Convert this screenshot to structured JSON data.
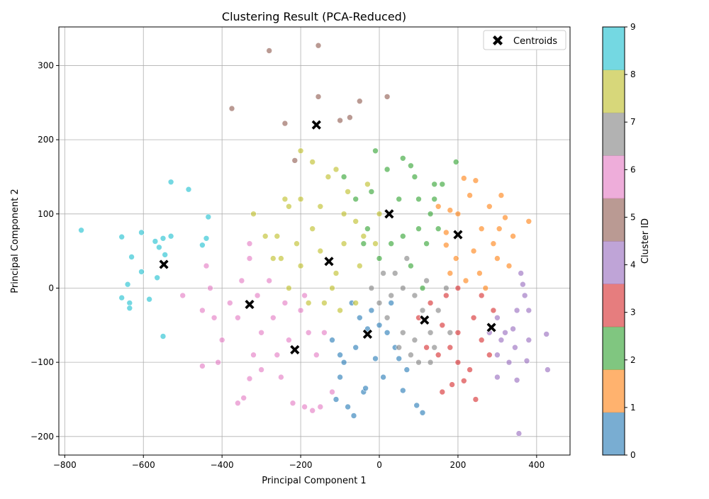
{
  "chart_data": {
    "type": "scatter",
    "title": "Clustering Result (PCA-Reduced)",
    "xlabel": "Principal Component 1",
    "ylabel": "Principal Component 2",
    "xlim": [
      -815,
      485
    ],
    "ylim": [
      -225,
      352
    ],
    "xticks": [
      -800,
      -600,
      -400,
      -200,
      0,
      200,
      400
    ],
    "yticks": [
      -200,
      -100,
      0,
      100,
      200,
      300
    ],
    "xtick_labels": [
      "−800",
      "−600",
      "−400",
      "−200",
      "0",
      "200",
      "400"
    ],
    "ytick_labels": [
      "−200",
      "−100",
      "0",
      "100",
      "200",
      "300"
    ],
    "grid": true,
    "legend": {
      "position": "top-right",
      "label": "Centroids"
    },
    "colorbar": {
      "label": "Cluster ID",
      "ticks": [
        "0",
        "1",
        "2",
        "3",
        "4",
        "5",
        "6",
        "7",
        "8",
        "9"
      ],
      "colors": [
        "#1f77b4",
        "#ff7f0e",
        "#2ca02c",
        "#d62728",
        "#9467bd",
        "#8c564b",
        "#e377c2",
        "#7f7f7f",
        "#bcbd22",
        "#17becf"
      ]
    },
    "point_alpha": 0.6,
    "centroids": [
      {
        "cluster": 0,
        "x": -30,
        "y": -62
      },
      {
        "cluster": 1,
        "x": 200,
        "y": 72
      },
      {
        "cluster": 2,
        "x": 25,
        "y": 100
      },
      {
        "cluster": 3,
        "x": 115,
        "y": -43
      },
      {
        "cluster": 4,
        "x": 285,
        "y": -53
      },
      {
        "cluster": 5,
        "x": -160,
        "y": 220
      },
      {
        "cluster": 6,
        "x": -330,
        "y": -22
      },
      {
        "cluster": 7,
        "x": -215,
        "y": -83
      },
      {
        "cluster": 8,
        "x": -128,
        "y": 36
      },
      {
        "cluster": 9,
        "x": -548,
        "y": 32
      }
    ],
    "series": [
      {
        "cluster": 0,
        "points": [
          [
            -30,
            -55
          ],
          [
            -60,
            -80
          ],
          [
            -90,
            -100
          ],
          [
            -100,
            -120
          ],
          [
            -80,
            -160
          ],
          [
            -65,
            -172
          ],
          [
            -40,
            -140
          ],
          [
            10,
            -120
          ],
          [
            50,
            -95
          ],
          [
            60,
            -138
          ],
          [
            95,
            -158
          ],
          [
            110,
            -168
          ],
          [
            -110,
            -150
          ],
          [
            -20,
            -30
          ],
          [
            0,
            -50
          ],
          [
            20,
            -60
          ],
          [
            -50,
            -40
          ],
          [
            -70,
            -20
          ],
          [
            40,
            -80
          ],
          [
            -120,
            -70
          ],
          [
            -10,
            -95
          ],
          [
            70,
            -110
          ],
          [
            -35,
            -135
          ],
          [
            -100,
            -90
          ],
          [
            30,
            -20
          ]
        ]
      },
      {
        "cluster": 1,
        "points": [
          [
            150,
            110
          ],
          [
            180,
            105
          ],
          [
            230,
            125
          ],
          [
            280,
            110
          ],
          [
            310,
            125
          ],
          [
            320,
            95
          ],
          [
            340,
            70
          ],
          [
            300,
            40
          ],
          [
            255,
            20
          ],
          [
            220,
            10
          ],
          [
            195,
            40
          ],
          [
            170,
            75
          ],
          [
            245,
            145
          ],
          [
            215,
            148
          ],
          [
            380,
            90
          ],
          [
            260,
            80
          ],
          [
            290,
            60
          ],
          [
            180,
            20
          ],
          [
            330,
            30
          ],
          [
            240,
            50
          ],
          [
            200,
            100
          ],
          [
            170,
            58
          ],
          [
            305,
            80
          ],
          [
            270,
            0
          ]
        ]
      },
      {
        "cluster": 2,
        "points": [
          [
            -10,
            185
          ],
          [
            60,
            175
          ],
          [
            80,
            165
          ],
          [
            90,
            150
          ],
          [
            100,
            120
          ],
          [
            140,
            140
          ],
          [
            160,
            140
          ],
          [
            195,
            170
          ],
          [
            130,
            100
          ],
          [
            100,
            80
          ],
          [
            60,
            70
          ],
          [
            30,
            60
          ],
          [
            0,
            40
          ],
          [
            -30,
            80
          ],
          [
            -60,
            120
          ],
          [
            -90,
            150
          ],
          [
            -20,
            130
          ],
          [
            20,
            160
          ],
          [
            120,
            60
          ],
          [
            80,
            30
          ],
          [
            150,
            80
          ],
          [
            110,
            0
          ],
          [
            -40,
            60
          ],
          [
            50,
            120
          ],
          [
            140,
            120
          ]
        ]
      },
      {
        "cluster": 3,
        "points": [
          [
            100,
            -40
          ],
          [
            130,
            -20
          ],
          [
            160,
            -50
          ],
          [
            180,
            -80
          ],
          [
            200,
            -100
          ],
          [
            230,
            -110
          ],
          [
            245,
            -150
          ],
          [
            215,
            -125
          ],
          [
            260,
            -70
          ],
          [
            290,
            -30
          ],
          [
            280,
            -90
          ],
          [
            160,
            -140
          ],
          [
            185,
            -130
          ],
          [
            240,
            -40
          ],
          [
            200,
            -60
          ],
          [
            150,
            -90
          ],
          [
            120,
            -80
          ],
          [
            260,
            -10
          ],
          [
            200,
            0
          ],
          [
            170,
            -10
          ]
        ]
      },
      {
        "cluster": 4,
        "points": [
          [
            300,
            -40
          ],
          [
            320,
            -60
          ],
          [
            350,
            -30
          ],
          [
            370,
            -10
          ],
          [
            380,
            -30
          ],
          [
            360,
            20
          ],
          [
            300,
            -120
          ],
          [
            330,
            -100
          ],
          [
            355,
            -196
          ],
          [
            425,
            -62
          ],
          [
            428,
            -110
          ],
          [
            375,
            -98
          ],
          [
            345,
            -80
          ],
          [
            310,
            -70
          ],
          [
            280,
            -60
          ],
          [
            365,
            5
          ],
          [
            340,
            -55
          ],
          [
            380,
            -70
          ],
          [
            300,
            -90
          ],
          [
            350,
            -124
          ]
        ]
      },
      {
        "cluster": 5,
        "points": [
          [
            -155,
            258
          ],
          [
            -75,
            230
          ],
          [
            -50,
            252
          ],
          [
            -100,
            226
          ],
          [
            -280,
            320
          ],
          [
            -240,
            222
          ],
          [
            -375,
            242
          ],
          [
            -215,
            172
          ],
          [
            -155,
            327
          ],
          [
            20,
            258
          ]
        ]
      },
      {
        "cluster": 6,
        "points": [
          [
            -450,
            -105
          ],
          [
            -410,
            -100
          ],
          [
            -360,
            -155
          ],
          [
            -345,
            -148
          ],
          [
            -330,
            -122
          ],
          [
            -300,
            -110
          ],
          [
            -250,
            -120
          ],
          [
            -220,
            -155
          ],
          [
            -190,
            -160
          ],
          [
            -170,
            -165
          ],
          [
            -150,
            -160
          ],
          [
            -120,
            -140
          ],
          [
            -380,
            -20
          ],
          [
            -430,
            0
          ],
          [
            -440,
            30
          ],
          [
            -330,
            40
          ],
          [
            -300,
            -60
          ],
          [
            -270,
            -40
          ],
          [
            -240,
            -20
          ],
          [
            -200,
            -30
          ],
          [
            -180,
            -60
          ],
          [
            -350,
            10
          ],
          [
            -400,
            -70
          ],
          [
            -320,
            -90
          ],
          [
            -260,
            -90
          ],
          [
            -160,
            -90
          ],
          [
            -140,
            -60
          ],
          [
            -420,
            -40
          ],
          [
            -280,
            10
          ],
          [
            -230,
            -70
          ],
          [
            -360,
            -40
          ],
          [
            -310,
            -10
          ],
          [
            -500,
            -10
          ],
          [
            -450,
            -30
          ],
          [
            -190,
            -10
          ],
          [
            -330,
            60
          ]
        ]
      },
      {
        "cluster": 7,
        "points": [
          [
            40,
            20
          ],
          [
            60,
            0
          ],
          [
            90,
            -10
          ],
          [
            110,
            -30
          ],
          [
            130,
            -60
          ],
          [
            140,
            -80
          ],
          [
            80,
            -90
          ],
          [
            20,
            -40
          ],
          [
            0,
            -20
          ],
          [
            -20,
            0
          ],
          [
            60,
            -60
          ],
          [
            100,
            -100
          ],
          [
            150,
            -30
          ],
          [
            170,
            0
          ],
          [
            70,
            40
          ],
          [
            30,
            -10
          ],
          [
            50,
            -80
          ],
          [
            120,
            10
          ],
          [
            180,
            -60
          ],
          [
            90,
            -70
          ],
          [
            10,
            20
          ],
          [
            130,
            -100
          ]
        ]
      },
      {
        "cluster": 8,
        "points": [
          [
            -200,
            185
          ],
          [
            -170,
            170
          ],
          [
            -110,
            160
          ],
          [
            -130,
            150
          ],
          [
            -80,
            130
          ],
          [
            -60,
            90
          ],
          [
            -40,
            70
          ],
          [
            -10,
            60
          ],
          [
            -90,
            100
          ],
          [
            -150,
            110
          ],
          [
            -200,
            120
          ],
          [
            -230,
            110
          ],
          [
            -260,
            70
          ],
          [
            -290,
            70
          ],
          [
            -250,
            40
          ],
          [
            -200,
            30
          ],
          [
            -150,
            50
          ],
          [
            -120,
            0
          ],
          [
            -100,
            -30
          ],
          [
            -60,
            -20
          ],
          [
            -230,
            0
          ],
          [
            -180,
            -20
          ],
          [
            -320,
            100
          ],
          [
            -90,
            60
          ],
          [
            -50,
            30
          ],
          [
            -170,
            80
          ],
          [
            -210,
            60
          ],
          [
            -140,
            -20
          ],
          [
            -110,
            20
          ],
          [
            -270,
            40
          ],
          [
            0,
            100
          ],
          [
            -30,
            140
          ],
          [
            -240,
            120
          ]
        ]
      },
      {
        "cluster": 9,
        "points": [
          [
            -758,
            78
          ],
          [
            -655,
            69
          ],
          [
            -605,
            75
          ],
          [
            -570,
            63
          ],
          [
            -560,
            55
          ],
          [
            -550,
            67
          ],
          [
            -530,
            70
          ],
          [
            -545,
            45
          ],
          [
            -530,
            143
          ],
          [
            -485,
            133
          ],
          [
            -435,
            96
          ],
          [
            -440,
            67
          ],
          [
            -450,
            58
          ],
          [
            -630,
            42
          ],
          [
            -605,
            22
          ],
          [
            -565,
            14
          ],
          [
            -640,
            5
          ],
          [
            -655,
            -13
          ],
          [
            -635,
            -20
          ],
          [
            -635,
            -27
          ],
          [
            -585,
            -15
          ],
          [
            -550,
            -65
          ]
        ]
      }
    ]
  }
}
